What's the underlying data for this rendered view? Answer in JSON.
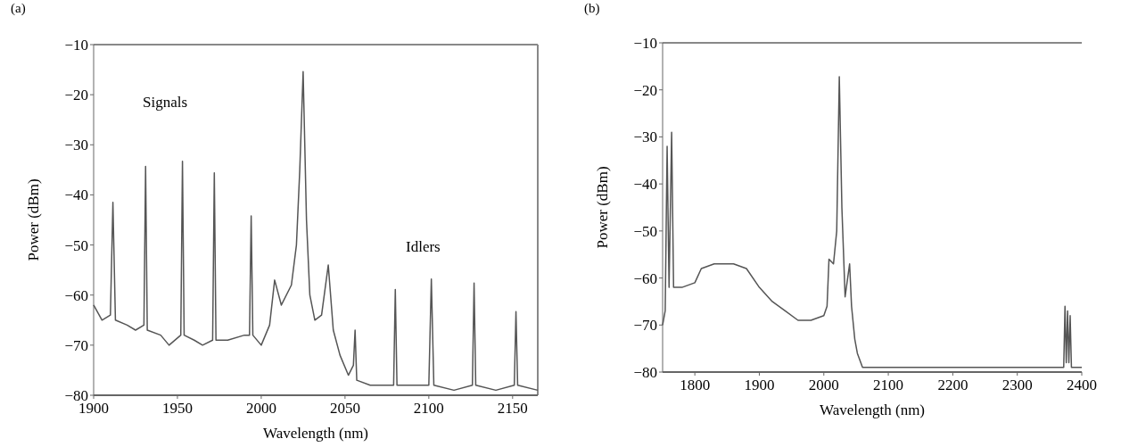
{
  "chart_data": [
    {
      "type": "line",
      "title": "(a)",
      "xlabel": "Wavelength (nm)",
      "ylabel": "Power (dBm)",
      "xlim": [
        1900,
        2165
      ],
      "ylim": [
        -80,
        -10
      ],
      "xticks": [
        1900,
        1950,
        2000,
        2050,
        2100,
        2150
      ],
      "yticks": [
        -80,
        -70,
        -60,
        -50,
        -40,
        -30,
        -20,
        -10
      ],
      "grid": false,
      "line_style": "solid",
      "annotations": [
        "Signals",
        "Idlers"
      ],
      "series": [
        {
          "color": "#555555",
          "x": [
            1900,
            1905,
            1910,
            1911.5,
            1913,
            1920,
            1925,
            1930,
            1931,
            1932,
            1940,
            1945,
            1952,
            1953,
            1954,
            1960,
            1965,
            1971,
            1972,
            1973,
            1980,
            1990,
            1993,
            1994,
            1995,
            2000,
            2005,
            2008,
            2012,
            2018,
            2021,
            2023,
            2025,
            2027,
            2029,
            2032,
            2036,
            2040,
            2043,
            2047,
            2052,
            2055,
            2056,
            2057,
            2065,
            2075,
            2079,
            2080,
            2081,
            2090,
            2100,
            2101.5,
            2103,
            2115,
            2126,
            2127,
            2128,
            2140,
            2151,
            2152,
            2153,
            2165
          ],
          "values": [
            -62,
            -65,
            -64,
            -41.5,
            -65,
            -66,
            -67,
            -66,
            -34.3,
            -67,
            -68,
            -70,
            -68,
            -33.3,
            -68,
            -69,
            -70,
            -69,
            -35.6,
            -69,
            -69,
            -68,
            -68,
            -44.2,
            -68,
            -70,
            -66,
            -57,
            -62,
            -58,
            -50,
            -35,
            -15.4,
            -45,
            -60,
            -65,
            -64,
            -54,
            -67,
            -72,
            -76,
            -74,
            -67,
            -77,
            -78,
            -78,
            -78,
            -58.9,
            -78,
            -78,
            -78,
            -56.8,
            -78,
            -79,
            -78,
            -57.6,
            -78,
            -79,
            -78,
            -63.3,
            -78,
            -79
          ]
        }
      ]
    },
    {
      "type": "line",
      "title": "(b)",
      "xlabel": "Wavelength (nm)",
      "ylabel": "Power (dBm)",
      "xlim": [
        1750,
        2400
      ],
      "ylim": [
        -80,
        -10
      ],
      "xticks": [
        1800,
        1900,
        2000,
        2100,
        2200,
        2300,
        2400
      ],
      "yticks": [
        -80,
        -70,
        -60,
        -50,
        -40,
        -30,
        -20,
        -10
      ],
      "grid": false,
      "line_style": "solid",
      "series": [
        {
          "color": "#555555",
          "x": [
            1750,
            1754,
            1757,
            1760,
            1764,
            1767,
            1780,
            1800,
            1810,
            1830,
            1860,
            1880,
            1900,
            1920,
            1940,
            1960,
            1980,
            2000,
            2005,
            2008,
            2015,
            2020,
            2024,
            2028,
            2033,
            2040,
            2043,
            2048,
            2052,
            2060,
            2100,
            2150,
            2200,
            2250,
            2300,
            2350,
            2372,
            2374,
            2376,
            2378,
            2380,
            2382,
            2384,
            2386,
            2388,
            2400
          ],
          "values": [
            -70,
            -67,
            -32,
            -62,
            -29,
            -62,
            -62,
            -61,
            -58,
            -57,
            -57,
            -58,
            -62,
            -65,
            -67,
            -69,
            -69,
            -68,
            -66,
            -56,
            -57,
            -50,
            -17.2,
            -45,
            -64,
            -57,
            -66,
            -73,
            -76,
            -79,
            -79,
            -79,
            -79,
            -79,
            -79,
            -79,
            -79,
            -66,
            -78,
            -67,
            -78,
            -68,
            -79,
            -79,
            -79,
            -79
          ]
        }
      ]
    }
  ]
}
